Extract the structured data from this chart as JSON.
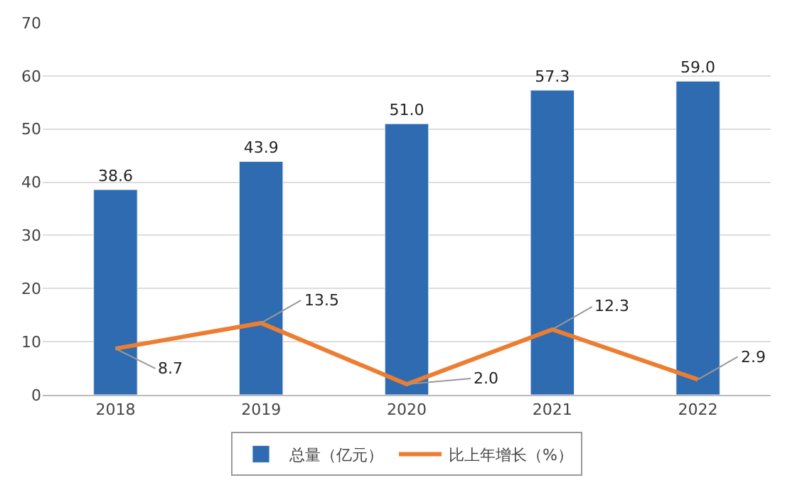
{
  "chart_data": {
    "type": "bar",
    "categories": [
      "2018",
      "2019",
      "2020",
      "2021",
      "2022"
    ],
    "series": [
      {
        "name": "总量（亿元）",
        "color": "#2e6bb0",
        "values": [
          38.6,
          43.9,
          51.0,
          57.3,
          59.0
        ],
        "value_labels": [
          "38.6",
          "43.9",
          "51.0",
          "57.3",
          "59.0"
        ]
      },
      {
        "name": "比上年增长（%）",
        "type": "line",
        "color": "#ed7d31",
        "values": [
          8.7,
          13.5,
          2.0,
          12.3,
          2.9
        ],
        "value_labels": [
          "8.7",
          "13.5",
          "2.0",
          "12.3",
          "2.9"
        ]
      }
    ],
    "ylim": [
      0,
      70
    ],
    "yticks": [
      0,
      10,
      20,
      30,
      40,
      50,
      60,
      70
    ],
    "grid": "y",
    "legend": "bottom",
    "marker": "none",
    "line_style": "solid"
  }
}
